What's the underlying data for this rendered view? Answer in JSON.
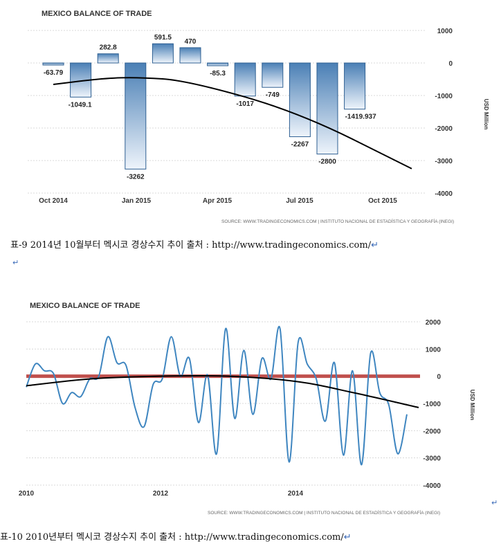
{
  "chart_data": [
    {
      "type": "bar",
      "title": "MEXICO BALANCE OF TRADE",
      "ylabel": "USD Million",
      "ylim": [
        -4000,
        1000
      ],
      "yticks": [
        "1000",
        "0",
        "-1000",
        "-2000",
        "-3000",
        "-4000"
      ],
      "xticks": [
        "Oct 2014",
        "Jan 2015",
        "Apr 2015",
        "Jul 2015",
        "Oct 2015"
      ],
      "values": [
        -63.79,
        -1049.1,
        282.8,
        -3262,
        591.5,
        470,
        -85.3,
        -1017,
        -749,
        -2267,
        -2800,
        -1419.937
      ],
      "value_labels": [
        "-63.79",
        "-1049.1",
        "282.8",
        "-3262",
        "591.5",
        "470",
        "-85.3",
        "-1017",
        "-749",
        "-2267",
        "-2800",
        "-1419.937"
      ],
      "trend": [
        -660,
        -470,
        -440,
        -540,
        -1500,
        -3250
      ],
      "source": "SOURCE: WWW.TRADINGECONOMICS.COM | INSTITUTO NACIONAL DE ESTADÍSTICA Y GEOGRAFÍA (INEGI)",
      "grid": true,
      "bar_color": "#4a7fb5"
    },
    {
      "type": "line",
      "title": "MEXICO BALANCE OF TRADE",
      "ylabel": "USD Million",
      "ylim": [
        -4000,
        2000
      ],
      "yticks": [
        "2000",
        "1000",
        "0",
        "-1000",
        "-2000",
        "-3000",
        "-4000"
      ],
      "xticks": [
        "2010",
        "2012",
        "2014"
      ],
      "series": [
        {
          "values": [
            -400,
            450,
            200,
            100,
            -1000,
            -600,
            -750,
            -100,
            0,
            1450,
            500,
            400,
            -1150,
            -1850,
            -300,
            -100,
            1450,
            0,
            650,
            -1700,
            50,
            -2850,
            1750,
            -1550,
            950,
            -1400,
            650,
            -100,
            1750,
            -3150,
            1250,
            450,
            -100,
            -1650,
            500,
            -2900,
            200,
            -3250,
            850,
            -600,
            -1050,
            -2850,
            -1400
          ],
          "color": "#3f86c0"
        }
      ],
      "trend": [
        -350,
        -100,
        0,
        0,
        -200,
        -600,
        -1150
      ],
      "reference_line": 0,
      "reference_color": "#c0504d",
      "source": "SOURCE: WWW.TRADINGECONOMICS.COM | INSTITUTO NACIONAL DE ESTADÍSTICA Y GEOGRAFÍA (INEGI)",
      "grid": true
    }
  ],
  "captions": {
    "first": "표-9 2014년 10월부터 멕시코 경상수지 추이 출처 : http://www.tradingeconomics.com/",
    "second": "표-10 2010년부터 멕시코 경상수지 추이 출처 : http://www.tradingeconomics.com/"
  },
  "marks": {
    "return_symbol": "↵"
  },
  "colors": {
    "bar": "#4a7fb5",
    "line": "#3f86c0",
    "reference": "#c0504d",
    "trend": "#000000"
  }
}
